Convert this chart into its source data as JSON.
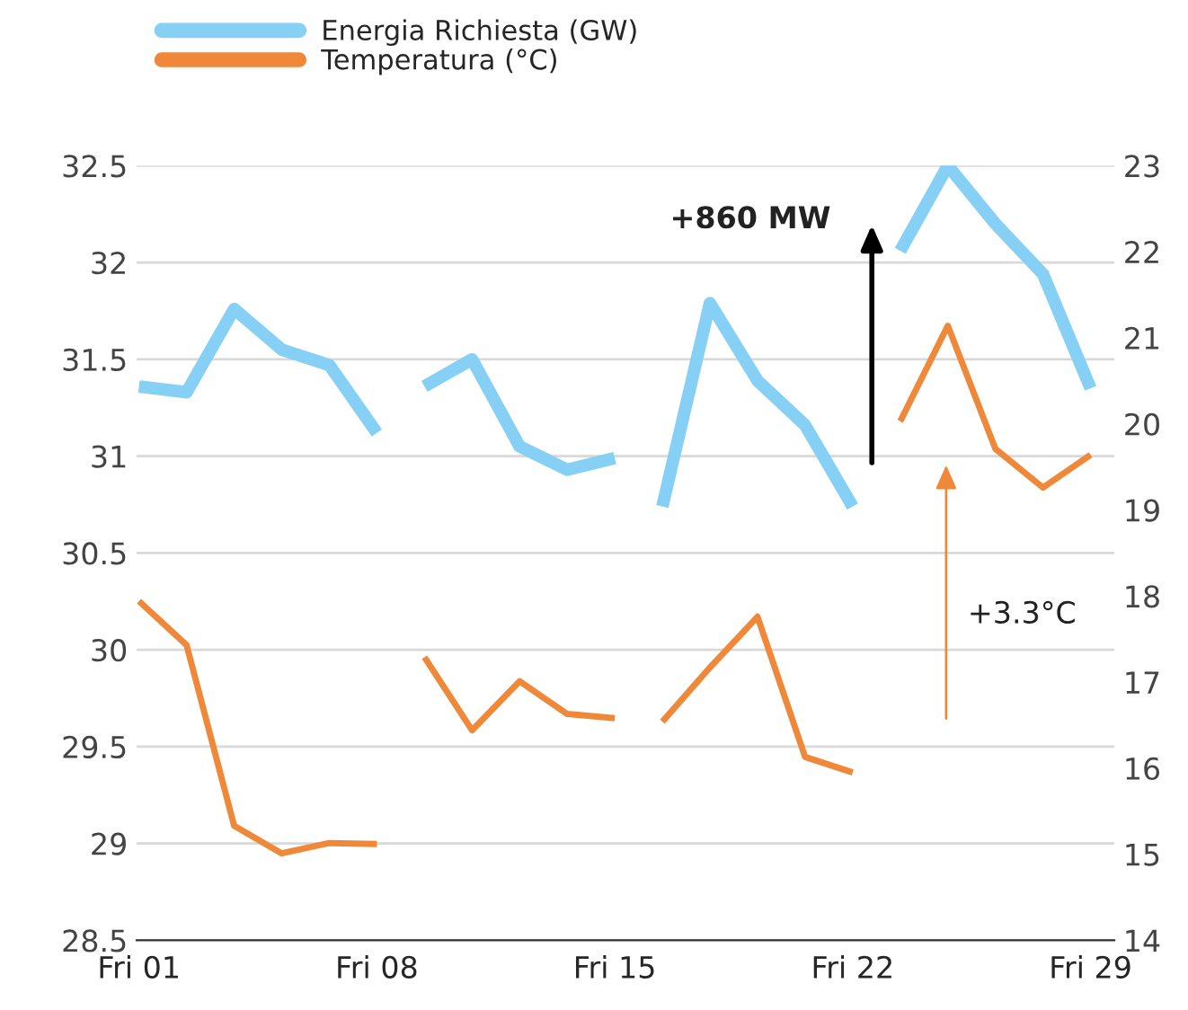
{
  "chart_data": {
    "type": "line",
    "categories": [
      "Fri 01",
      null,
      null,
      null,
      null,
      "Fri 08",
      null,
      null,
      null,
      null,
      "Fri 15",
      null,
      null,
      null,
      null,
      "Fri 22",
      null,
      null,
      null,
      null,
      "Fri 29"
    ],
    "series": [
      {
        "name": "Energia Richiesta (GW)",
        "color": "#86cff5",
        "values": [
          31.36,
          31.33,
          31.76,
          31.55,
          31.47,
          31.12,
          null,
          null,
          null,
          null,
          null,
          null,
          null,
          null,
          null,
          null,
          null,
          null,
          null,
          null,
          null
        ]
      },
      {
        "color": "#86cff5",
        "values": [
          null,
          null,
          null,
          null,
          null,
          null,
          31.36,
          31.5,
          31.05,
          30.93,
          30.99,
          null,
          null,
          null,
          null,
          null,
          null,
          null,
          null,
          null,
          null
        ]
      },
      {
        "color": "#86cff5",
        "values": [
          null,
          null,
          null,
          null,
          null,
          null,
          null,
          null,
          null,
          null,
          null,
          30.74,
          31.79,
          31.39,
          31.16,
          30.74,
          null,
          null,
          null,
          null,
          null
        ]
      },
      {
        "color": "#86cff5",
        "values": [
          null,
          null,
          null,
          null,
          null,
          null,
          null,
          null,
          null,
          null,
          null,
          null,
          null,
          null,
          null,
          null,
          32.06,
          32.5,
          32.2,
          31.94,
          31.35
        ]
      },
      {
        "name": "Temperatura (°C)",
        "color": "#f0883a",
        "axis": "y2",
        "values": [
          17.94,
          17.43,
          15.33,
          15.01,
          15.13,
          15.12,
          null,
          null,
          null,
          null,
          null,
          null,
          null,
          null,
          null,
          null,
          null,
          null,
          null,
          null,
          null
        ]
      },
      {
        "color": "#f0883a",
        "axis": "y2",
        "values": [
          null,
          null,
          null,
          null,
          null,
          null,
          17.29,
          16.44,
          17.01,
          16.63,
          16.58,
          null,
          null,
          null,
          null,
          null,
          null,
          null,
          null,
          null,
          null
        ]
      },
      {
        "color": "#f0883a",
        "axis": "y2",
        "values": [
          null,
          null,
          null,
          null,
          null,
          null,
          null,
          null,
          null,
          null,
          null,
          16.54,
          17.17,
          17.76,
          16.13,
          15.95,
          null,
          null,
          null,
          null,
          null
        ]
      },
      {
        "color": "#f0883a",
        "axis": "y2",
        "values": [
          null,
          null,
          null,
          null,
          null,
          null,
          null,
          null,
          null,
          null,
          null,
          null,
          null,
          null,
          null,
          null,
          20.03,
          21.14,
          19.71,
          19.26,
          19.64
        ]
      }
    ],
    "ylim": [
      28.5,
      32.5
    ],
    "yticks": [
      28.5,
      29,
      29.5,
      30,
      30.5,
      31,
      31.5,
      32,
      32.5
    ],
    "y2lim": [
      14,
      23
    ],
    "y2ticks": [
      14,
      15,
      16,
      17,
      18,
      19,
      20,
      21,
      22,
      23
    ],
    "grid": "y",
    "legend": "top left",
    "marker": "none",
    "line_style": "solid",
    "annotations": [
      "+860 MW",
      "+3.3°C"
    ]
  }
}
